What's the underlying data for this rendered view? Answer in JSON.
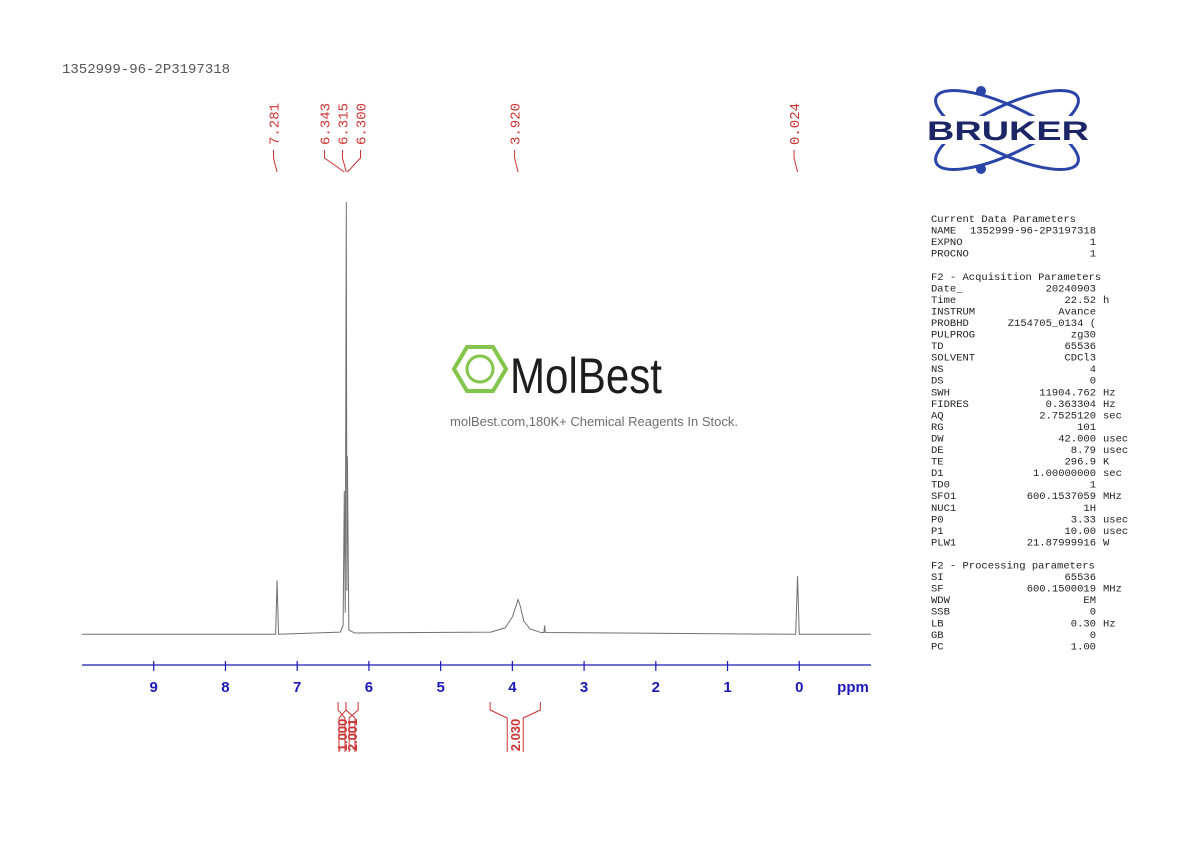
{
  "chart_data": {
    "type": "line",
    "title": "1352999-96-2P3197318",
    "x_label": "ppm",
    "xlim": [
      10,
      -1
    ],
    "xticks": [
      9,
      8,
      7,
      6,
      5,
      4,
      3,
      2,
      1,
      0
    ],
    "ylim": [
      -5,
      100
    ],
    "series": [
      {
        "color": "#707070",
        "x": [
          10,
          7.3,
          7.281,
          7.26,
          6.4,
          6.36,
          6.343,
          6.33,
          6.315,
          6.307,
          6.3,
          6.28,
          6.2,
          4.3,
          4.1,
          4.0,
          3.95,
          3.92,
          3.89,
          3.84,
          3.75,
          3.6,
          3.56,
          3.55,
          3.54,
          0.05,
          0.024,
          0.0,
          -1
        ],
        "values": [
          0,
          0,
          12.4,
          0,
          0.5,
          2,
          33,
          5,
          99.5,
          10,
          41,
          1,
          0.3,
          0.5,
          1.5,
          4,
          6.5,
          8,
          6.5,
          3,
          1.2,
          0.4,
          0.4,
          2,
          0.4,
          0,
          13.4,
          0,
          0
        ]
      }
    ],
    "peaks": [
      7.281,
      6.343,
      6.315,
      6.3,
      3.92,
      0.024
    ],
    "peak_labels": [
      "7.281",
      "6.343",
      "6.315",
      "6.300",
      "3.920",
      "0.024"
    ],
    "peak_color": "#cc3333",
    "axis_color": "#1a1ab8",
    "integrals": {
      "ranges": [
        [
          6.43,
          6.32
        ],
        [
          6.32,
          6.15
        ],
        [
          4.31,
          3.61
        ]
      ],
      "values": [
        1,
        2.001,
        2.03
      ],
      "value_labels": [
        "1.000",
        "2.001",
        "2.030"
      ]
    }
  },
  "parameters": [
    {
      "title": "Current Data Parameters",
      "rows": [
        [
          "NAME",
          "1352999-96-2P3197318"
        ],
        [
          "EXPNO",
          "1"
        ],
        [
          "PROCNO",
          "1"
        ]
      ]
    },
    {
      "title": "F2 - Acquisition Parameters",
      "rows": [
        [
          "Date_",
          "20240903"
        ],
        [
          "Time",
          "22.52",
          "h"
        ],
        [
          "INSTRUM",
          "Avance"
        ],
        [
          "PROBHD",
          "Z154705_0134 ("
        ],
        [
          "PULPROG",
          "zg30"
        ],
        [
          "TD",
          "65536"
        ],
        [
          "SOLVENT",
          "CDCl3"
        ],
        [
          "NS",
          "4"
        ],
        [
          "DS",
          "0"
        ],
        [
          "SWH",
          "11904.762",
          "Hz"
        ],
        [
          "FIDRES",
          "0.363304",
          "Hz"
        ],
        [
          "AQ",
          "2.7525120",
          "sec"
        ],
        [
          "RG",
          "101"
        ],
        [
          "DW",
          "42.000",
          "usec"
        ],
        [
          "DE",
          "8.79",
          "usec"
        ],
        [
          "TE",
          "296.9",
          "K"
        ],
        [
          "D1",
          "1.00000000",
          "sec"
        ],
        [
          "TD0",
          "1"
        ],
        [
          "SFO1",
          "600.1537059",
          "MHz"
        ],
        [
          "NUC1",
          "1H"
        ],
        [
          "P0",
          "3.33",
          "usec"
        ],
        [
          "P1",
          "10.00",
          "usec"
        ],
        [
          "PLW1",
          "21.87999916",
          "W"
        ]
      ]
    },
    {
      "title": "F2 - Processing parameters",
      "rows": [
        [
          "SI",
          "65536"
        ],
        [
          "SF",
          "600.1500019",
          "MHz"
        ],
        [
          "WDW",
          "EM"
        ],
        [
          "SSB",
          "0"
        ],
        [
          "LB",
          "0.30",
          "Hz"
        ],
        [
          "GB",
          "0"
        ],
        [
          "PC",
          "1.00"
        ]
      ]
    }
  ],
  "logo": {
    "brand": "BRUKER"
  },
  "watermark": {
    "brand": "MolBest",
    "tagline": "molBest.com,180K+ Chemical Reagents In Stock."
  }
}
